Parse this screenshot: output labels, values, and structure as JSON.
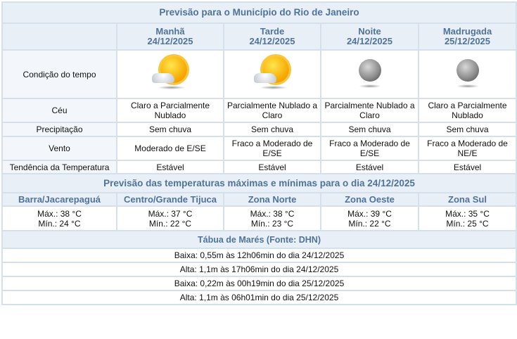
{
  "title": "Previsão para o Município do Rio de Janeiro",
  "periods": [
    {
      "name": "Manhã",
      "date": "24/12/2025",
      "icon": "sun-cloud-icon",
      "ceu": "Claro a Parcialmente Nublado",
      "precip": "Sem chuva",
      "vento": "Moderado de E/SE",
      "tendencia": "Estável"
    },
    {
      "name": "Tarde",
      "date": "24/12/2025",
      "icon": "sun-cloud-icon",
      "ceu": "Parcialmente Nublado a Claro",
      "precip": "Sem chuva",
      "vento": "Fraco a Moderado de E/SE",
      "tendencia": "Estável"
    },
    {
      "name": "Noite",
      "date": "24/12/2025",
      "icon": "moon-icon",
      "ceu": "Parcialmente Nublado a Claro",
      "precip": "Sem chuva",
      "vento": "Fraco a Moderado de E/SE",
      "tendencia": "Estável"
    },
    {
      "name": "Madrugada",
      "date": "25/12/2025",
      "icon": "moon-icon",
      "ceu": "Claro a Parcialmente Nublado",
      "precip": "Sem chuva",
      "vento": "Fraco a Moderado de NE/E",
      "tendencia": "Estável"
    }
  ],
  "labels": {
    "condicao": "Condição do tempo",
    "ceu": "Céu",
    "precip": "Precipitação",
    "vento": "Vento",
    "tendencia": "Tendência da Temperatura"
  },
  "temps_title": "Previsão das temperaturas máximas e mínimas para o dia 24/12/2025",
  "zones": [
    {
      "name": "Barra/Jacarepaguá",
      "max": "Máx.: 38 °C",
      "min": "Mín.: 24 °C"
    },
    {
      "name": "Centro/Grande Tijuca",
      "max": "Máx.: 37 °C",
      "min": "Mín.: 22 °C"
    },
    {
      "name": "Zona Norte",
      "max": "Máx.: 38 °C",
      "min": "Mín.: 23 °C"
    },
    {
      "name": "Zona Oeste",
      "max": "Máx.: 39 °C",
      "min": "Mín.: 22 °C"
    },
    {
      "name": "Zona Sul",
      "max": "Máx.: 35 °C",
      "min": "Mín.: 25 °C"
    }
  ],
  "tides_title": "Tábua de Marés (Fonte: DHN)",
  "tides": [
    "Baixa: 0,55m às 12h06min do dia 24/12/2025",
    "Alta: 1,1m às 17h06min do dia 24/12/2025",
    "Baixa: 0,22m às 00h19min do dia 25/12/2025",
    "Alta: 1,1m às 06h01min do dia 25/12/2025"
  ]
}
